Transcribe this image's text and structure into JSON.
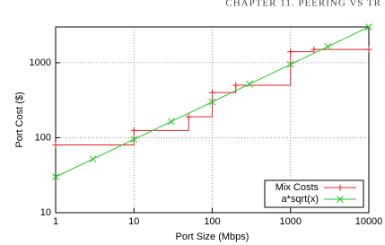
{
  "header": "CHAPTER 11. PEERING VS TR",
  "chart_data": {
    "type": "line",
    "log_x": true,
    "log_y": true,
    "grid": true,
    "legend": "bottom-right",
    "xlabel": "Port Size (Mbps)",
    "ylabel": "Port Cost ($)",
    "xlim": [
      1,
      10000
    ],
    "ylim": [
      10,
      3000
    ],
    "xticks": [
      1,
      10,
      100,
      1000,
      10000
    ],
    "yticks": [
      10,
      100,
      1000
    ],
    "series": [
      {
        "name": "Mix Costs",
        "color": "#e0202a",
        "style": "steps",
        "marker": "+",
        "x": [
          1,
          10,
          50,
          100,
          200,
          1000,
          2000,
          10000
        ],
        "values": [
          80,
          125,
          190,
          400,
          500,
          1400,
          1500,
          1500
        ]
      },
      {
        "name": "a*sqrt(x)",
        "color": "#22c922",
        "style": "line",
        "marker": "x",
        "x": [
          1,
          3,
          10,
          30,
          100,
          300,
          1000,
          3000,
          10000
        ],
        "values": [
          30,
          52,
          95,
          164,
          300,
          520,
          949,
          1643,
          3000
        ]
      }
    ]
  }
}
